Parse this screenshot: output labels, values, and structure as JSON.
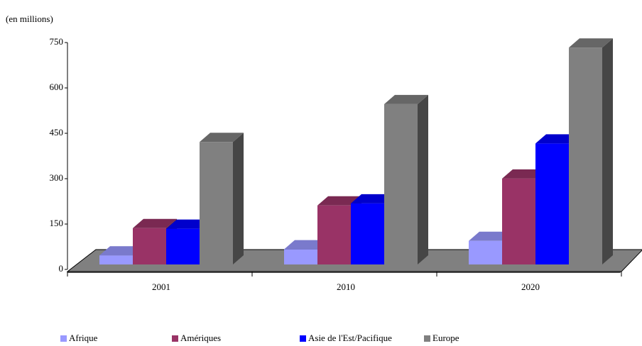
{
  "chart_data": {
    "type": "bar3d",
    "subtitle": "(en millions)",
    "categories": [
      "2001",
      "2010",
      "2020"
    ],
    "series": [
      {
        "name": "Afrique",
        "color": "#9999ff",
        "values": [
          30,
          50,
          78
        ]
      },
      {
        "name": "Amériques",
        "color": "#993366",
        "values": [
          120,
          195,
          284
        ]
      },
      {
        "name": "Asie de l'Est/Pacifique",
        "color": "#0000ff",
        "values": [
          118,
          202,
          400
        ]
      },
      {
        "name": "Europe",
        "color": "#808080",
        "values": [
          405,
          530,
          717
        ]
      }
    ],
    "ylim": [
      0,
      750
    ],
    "yticks": [
      0,
      150,
      300,
      450,
      600,
      750
    ]
  }
}
